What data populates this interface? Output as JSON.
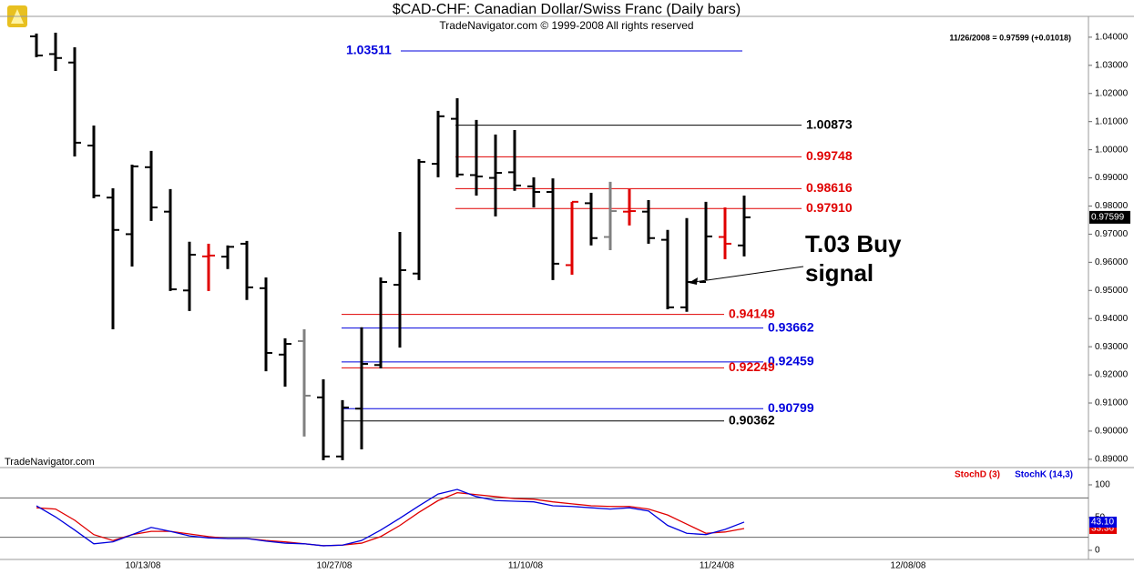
{
  "chart_data": [
    {
      "type": "ohlc",
      "title": "$CAD-CHF:  Canadian Dollar/Swiss Franc  (Daily bars)",
      "subtitle": "TradeNavigator.com © 1999-2008 All rights reserved",
      "header_info": "11/26/2008 = 0.97599 (+0.01018)",
      "watermark": "TradeNavigator.com",
      "annotation": [
        "T.03 Buy",
        "signal"
      ],
      "last_price": {
        "value": 0.97599,
        "label": "0.97599"
      },
      "categories": [
        null,
        null,
        null,
        null,
        null,
        null,
        "10/13/08",
        null,
        null,
        null,
        null,
        null,
        null,
        null,
        null,
        null,
        "10/27/08",
        null,
        null,
        null,
        null,
        null,
        null,
        null,
        null,
        null,
        "11/10/08",
        null,
        null,
        null,
        null,
        null,
        null,
        null,
        null,
        null,
        "11/24/08",
        null,
        null,
        null,
        null,
        null,
        null,
        null,
        null,
        null,
        "12/08/08",
        null,
        null,
        null,
        null,
        null,
        null,
        null,
        null
      ],
      "open": [
        1.0403,
        1.034,
        1.031,
        1.0015,
        0.983,
        0.97,
        0.9938,
        0.978,
        0.95,
        0.9621,
        0.962,
        0.9666,
        0.9508,
        0.9272,
        0.932,
        0.912,
        0.891,
        0.908,
        0.9235,
        0.952,
        0.956,
        0.995,
        1.011,
        0.991,
        0.99,
        0.992,
        0.987,
        0.985,
        0.959,
        0.981,
        0.969,
        0.978,
        0.978,
        0.968,
        0.944,
        0.953,
        0.969,
        0.966,
        null,
        null,
        null,
        null,
        null,
        null,
        null,
        null,
        null,
        null,
        null,
        null,
        null,
        null,
        null,
        null,
        null
      ],
      "high": [
        1.0413,
        1.0416,
        1.0364,
        1.0086,
        0.9863,
        0.9947,
        0.9996,
        0.986,
        0.9673,
        0.9666,
        0.966,
        0.9676,
        0.9546,
        0.933,
        0.9362,
        0.9184,
        0.911,
        0.9369,
        0.9546,
        0.9708,
        0.9967,
        1.0138,
        1.0183,
        1.0106,
        1.0054,
        1.007,
        0.9902,
        0.9898,
        0.9815,
        0.9847,
        0.9886,
        0.986,
        0.9821,
        0.9715,
        0.9757,
        0.9815,
        0.9795,
        0.9837,
        null,
        null,
        null,
        null,
        null,
        null,
        null,
        null,
        null,
        null,
        null,
        null,
        null,
        null,
        null,
        null,
        null
      ],
      "low": [
        1.0329,
        1.028,
        0.9976,
        0.9828,
        0.9362,
        0.9585,
        0.9747,
        0.9498,
        0.9427,
        0.9498,
        0.9576,
        0.9466,
        0.9213,
        0.9158,
        0.8981,
        0.8897,
        0.8897,
        0.8935,
        0.9223,
        0.9297,
        0.9537,
        0.9902,
        0.9902,
        0.9837,
        0.9763,
        0.9854,
        0.9795,
        0.9537,
        0.9556,
        0.966,
        0.9643,
        0.9731,
        0.9666,
        0.9433,
        0.9424,
        0.9537,
        0.9611,
        0.9621,
        null,
        null,
        null,
        null,
        null,
        null,
        null,
        null,
        null,
        null,
        null,
        null,
        null,
        null,
        null,
        null,
        null
      ],
      "close": [
        1.0335,
        1.0326,
        1.0025,
        0.9837,
        0.9715,
        0.9941,
        0.9795,
        0.9504,
        0.9627,
        0.9624,
        0.9655,
        0.9511,
        0.9278,
        0.931,
        0.9126,
        0.891,
        0.9084,
        0.9239,
        0.953,
        0.9572,
        0.9957,
        1.0119,
        0.9912,
        0.9905,
        0.9918,
        0.9873,
        0.985,
        0.9595,
        0.9815,
        0.9686,
        0.9782,
        0.9782,
        0.9686,
        0.944,
        0.953,
        0.9692,
        0.9666,
        0.97599,
        null,
        null,
        null,
        null,
        null,
        null,
        null,
        null,
        null,
        null,
        null,
        null,
        null,
        null,
        null,
        null,
        null
      ],
      "bar_colors": [
        "#000",
        "#000",
        "#000",
        "#000",
        "#000",
        "#000",
        "#000",
        "#000",
        "#000",
        "#e00000",
        "#000",
        "#000",
        "#000",
        "#000",
        "#808080",
        "#000",
        "#000",
        "#000",
        "#000",
        "#000",
        "#000",
        "#000",
        "#000",
        "#000",
        "#000",
        "#000",
        "#000",
        "#000",
        "#e00000",
        "#000",
        "#808080",
        "#e00000",
        "#000",
        "#000",
        "#000",
        "#000",
        "#e00000",
        "#000",
        null,
        null,
        null,
        null,
        null,
        null,
        null,
        null,
        null,
        null,
        null,
        null,
        null,
        null,
        null,
        null,
        null
      ],
      "ylim": [
        0.8877,
        1.0474
      ],
      "yticks": [
        {
          "value": 0.89,
          "label": "0.89000"
        },
        {
          "value": 0.9,
          "label": "0.90000"
        },
        {
          "value": 0.91,
          "label": "0.91000"
        },
        {
          "value": 0.92,
          "label": "0.92000"
        },
        {
          "value": 0.93,
          "label": "0.93000"
        },
        {
          "value": 0.94,
          "label": "0.94000"
        },
        {
          "value": 0.95,
          "label": "0.95000"
        },
        {
          "value": 0.96,
          "label": "0.96000"
        },
        {
          "value": 0.97,
          "label": "0.97000"
        },
        {
          "value": 0.98,
          "label": "0.98000"
        },
        {
          "value": 0.99,
          "label": "0.99000"
        },
        {
          "value": 1.0,
          "label": "1.00000"
        },
        {
          "value": 1.01,
          "label": "1.01000"
        },
        {
          "value": 1.02,
          "label": "1.02000"
        },
        {
          "value": 1.03,
          "label": "1.03000"
        },
        {
          "value": 1.04,
          "label": "1.04000"
        }
      ],
      "levels": [
        {
          "value": 1.03511,
          "label": "1.03511",
          "color": "#0000dd"
        },
        {
          "value": 1.00873,
          "label": "1.00873",
          "color": "#000000"
        },
        {
          "value": 0.99748,
          "label": "0.99748",
          "color": "#e00000"
        },
        {
          "value": 0.98616,
          "label": "0.98616",
          "color": "#e00000"
        },
        {
          "value": 0.9791,
          "label": "0.97910",
          "color": "#e00000"
        },
        {
          "value": 0.94149,
          "label": "0.94149",
          "color": "#e00000"
        },
        {
          "value": 0.93662,
          "label": "0.93662",
          "color": "#0000dd"
        },
        {
          "value": 0.92459,
          "label": "0.92459",
          "color": "#0000dd"
        },
        {
          "value": 0.92249,
          "label": "0.92249",
          "color": "#e00000"
        },
        {
          "value": 0.90799,
          "label": "0.90799",
          "color": "#0000dd"
        },
        {
          "value": 0.90362,
          "label": "0.90362",
          "color": "#000000"
        }
      ]
    },
    {
      "type": "line",
      "ylim": [
        -13.9,
        120.8
      ],
      "yticks": [
        0,
        50,
        100
      ],
      "levels": [
        80,
        20
      ],
      "series": [
        {
          "name": "StochD (3)",
          "color": "#e00000",
          "value_labels_last": "33.36",
          "values": [
            65,
            63,
            46,
            24,
            15,
            24,
            29,
            29,
            25,
            21,
            18,
            18,
            15,
            13,
            10,
            7,
            8,
            11,
            21,
            38,
            58,
            76,
            88,
            85,
            82,
            79,
            78,
            74,
            71,
            68,
            67,
            67,
            63,
            54,
            40,
            26,
            28,
            33.36,
            null,
            null,
            null,
            null,
            null,
            null,
            null,
            null,
            null,
            null,
            null,
            null,
            null,
            null,
            null,
            null,
            null
          ]
        },
        {
          "name": "StochK (14,3)",
          "color": "#0000dd",
          "value_labels_last": "43.10",
          "values": [
            68,
            51,
            31,
            10,
            13,
            24,
            35,
            29,
            22,
            19,
            18,
            18,
            14,
            11,
            10,
            7,
            8,
            15,
            31,
            49,
            68,
            86,
            93,
            82,
            76,
            75,
            74,
            68,
            67,
            65,
            63,
            65,
            60,
            38,
            26,
            24,
            32,
            43.1,
            null,
            null,
            null,
            null,
            null,
            null,
            null,
            null,
            null,
            null,
            null,
            null,
            null,
            null,
            null,
            null,
            null
          ]
        }
      ]
    }
  ]
}
